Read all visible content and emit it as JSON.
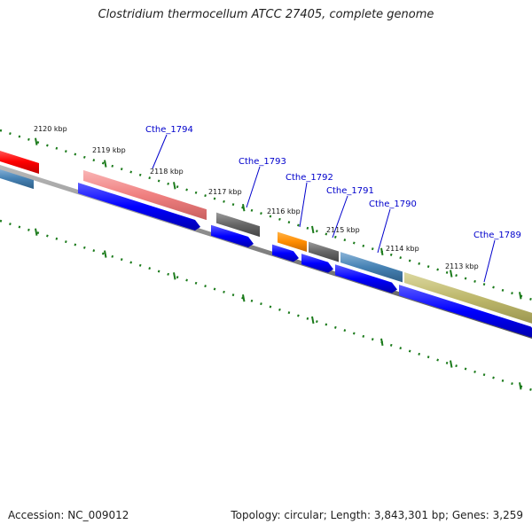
{
  "title": "Clostridium thermocellum ATCC 27405, complete genome",
  "footer": {
    "accession": "Accession: NC_009012",
    "topology": "Topology: circular; Length: 3,843,301 bp; Genes: 3,259"
  },
  "ticks": [
    {
      "label": "2120 kbp"
    },
    {
      "label": "2119 kbp"
    },
    {
      "label": "2118 kbp"
    },
    {
      "label": "2117 kbp"
    },
    {
      "label": "2116 kbp"
    },
    {
      "label": "2115 kbp"
    },
    {
      "label": "2114 kbp"
    },
    {
      "label": "2113 kbp"
    }
  ],
  "genes": [
    {
      "label": "Cthe_1794",
      "color": "#f08080"
    },
    {
      "label": "Cthe_1793",
      "color": "#666666"
    },
    {
      "label": "Cthe_1792",
      "color": "#ff8c00"
    },
    {
      "label": "Cthe_1791",
      "color": "#666666"
    },
    {
      "label": "Cthe_1790",
      "color": "#4682b4"
    },
    {
      "label": "Cthe_1789",
      "color": "#bdb76b"
    }
  ],
  "colors": {
    "backbone": "#808080",
    "cds": "#0000ff",
    "tick": "#1a7a1a",
    "edge_gene_red": "#ff0000",
    "edge_gene_steelblue": "#4682b4"
  }
}
